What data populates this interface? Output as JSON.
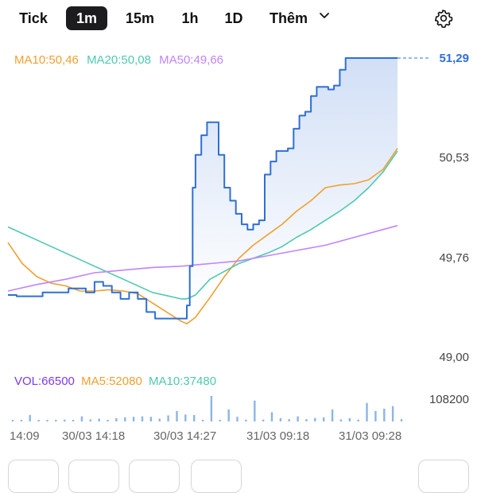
{
  "tabs": [
    {
      "label": "Tick",
      "active": false
    },
    {
      "label": "1m",
      "active": true
    },
    {
      "label": "15m",
      "active": false
    },
    {
      "label": "1h",
      "active": false
    },
    {
      "label": "1D",
      "active": false
    }
  ],
  "more_label": "Thêm",
  "icons": {
    "more": "chevron-down-icon",
    "settings": "gear-icon"
  },
  "ma_legend": [
    {
      "text": "MA10:50,46",
      "color": "#f0a030"
    },
    {
      "text": "MA20:50,08",
      "color": "#4ec9b0"
    },
    {
      "text": "MA50:49,66",
      "color": "#c084fc"
    }
  ],
  "vol_legend": [
    {
      "text": "VOL:66500",
      "color": "#7c3aed"
    },
    {
      "text": "MA5:52080",
      "color": "#f0a030"
    },
    {
      "text": "MA10:37480",
      "color": "#4ec9b0"
    }
  ],
  "price_axis": {
    "last": "51,29",
    "labels": [
      "50,53",
      "49,76",
      "49,00"
    ]
  },
  "volume_axis": {
    "max_label": "108200"
  },
  "time_axis": [
    "14:09",
    "30/03 14:18",
    "30/03 14:27",
    "31/03 09:18",
    "31/03 09:28"
  ],
  "colors": {
    "price": "#2f6fd6",
    "ma10": "#f0a030",
    "ma20": "#4ec9b0",
    "ma50": "#c084fc",
    "volume": "#8ab6e8"
  },
  "chart_data": {
    "type": "line",
    "price_range": [
      49.0,
      51.29
    ],
    "series": [
      {
        "name": "MA10",
        "color": "#f0a030",
        "x": [
          0,
          5,
          10,
          15,
          20,
          25,
          30,
          35,
          40,
          45,
          50,
          55,
          60,
          62,
          65,
          70,
          75,
          80,
          85,
          90,
          95,
          100,
          105,
          110,
          115,
          120,
          125,
          130,
          135
        ],
        "values": [
          49.88,
          49.72,
          49.62,
          49.57,
          49.55,
          49.51,
          49.51,
          49.52,
          49.51,
          49.49,
          49.42,
          49.35,
          49.28,
          49.26,
          49.31,
          49.46,
          49.62,
          49.76,
          49.86,
          49.94,
          50.02,
          50.12,
          50.2,
          50.3,
          50.32,
          50.33,
          50.36,
          50.44,
          50.6
        ]
      },
      {
        "name": "MA20",
        "color": "#4ec9b0",
        "x": [
          0,
          10,
          20,
          30,
          40,
          50,
          60,
          62,
          65,
          70,
          75,
          80,
          85,
          90,
          95,
          100,
          105,
          110,
          115,
          120,
          125,
          130,
          135
        ],
        "values": [
          50.0,
          49.9,
          49.8,
          49.7,
          49.6,
          49.5,
          49.45,
          49.45,
          49.48,
          49.6,
          49.66,
          49.72,
          49.76,
          49.8,
          49.85,
          49.92,
          49.98,
          50.05,
          50.12,
          50.2,
          50.3,
          50.42,
          50.58
        ]
      },
      {
        "name": "MA50",
        "color": "#c084fc",
        "x": [
          0,
          10,
          20,
          30,
          40,
          50,
          60,
          70,
          80,
          90,
          100,
          110,
          120,
          135
        ],
        "values": [
          49.51,
          49.56,
          49.6,
          49.65,
          49.67,
          49.69,
          49.7,
          49.72,
          49.74,
          49.78,
          49.82,
          49.86,
          49.92,
          50.01
        ]
      }
    ],
    "price_series": {
      "name": "Price",
      "color": "#2f6fd6",
      "x": [
        0,
        3,
        6,
        9,
        12,
        15,
        18,
        21,
        24,
        27,
        30,
        33,
        36,
        39,
        42,
        45,
        48,
        51,
        54,
        57,
        60,
        62,
        63,
        64,
        65,
        67,
        69,
        71,
        73,
        75,
        77,
        79,
        81,
        83,
        85,
        87,
        89,
        91,
        93,
        95,
        97,
        99,
        101,
        103,
        105,
        107,
        109,
        111,
        113,
        115,
        117,
        119,
        121,
        123,
        125,
        127,
        129,
        131,
        133,
        135
      ],
      "values": [
        49.48,
        49.47,
        49.47,
        49.47,
        49.5,
        49.5,
        49.5,
        49.53,
        49.53,
        49.5,
        49.58,
        49.55,
        49.5,
        49.45,
        49.5,
        49.45,
        49.35,
        49.3,
        49.3,
        49.3,
        49.3,
        49.4,
        49.7,
        50.3,
        50.55,
        50.7,
        50.8,
        50.8,
        50.55,
        50.3,
        50.2,
        50.1,
        50.02,
        49.98,
        50.02,
        50.05,
        50.4,
        50.5,
        50.58,
        50.58,
        50.6,
        50.75,
        50.85,
        50.88,
        51.0,
        51.07,
        51.07,
        51.05,
        51.08,
        51.2,
        51.29,
        51.29,
        51.29,
        51.29,
        51.29,
        51.29,
        51.29,
        51.29,
        51.29,
        51.29
      ]
    },
    "volume_series": {
      "name": "Volume",
      "x": [
        0,
        3,
        6,
        9,
        12,
        15,
        18,
        21,
        24,
        27,
        30,
        33,
        36,
        39,
        42,
        45,
        48,
        51,
        54,
        57,
        60,
        63,
        66,
        69,
        72,
        75,
        78,
        81,
        84,
        87,
        90,
        93,
        96,
        99,
        102,
        105,
        108,
        111,
        114,
        117,
        120,
        123,
        126,
        129,
        132,
        135
      ],
      "values": [
        3000,
        4000,
        28000,
        3000,
        5000,
        4000,
        8000,
        3000,
        22000,
        9000,
        12000,
        6000,
        14000,
        18000,
        20000,
        22000,
        20000,
        12000,
        26000,
        45000,
        30000,
        28000,
        6000,
        110000,
        7000,
        52000,
        20000,
        8000,
        90000,
        8000,
        40000,
        14000,
        10000,
        22000,
        10000,
        15000,
        18000,
        52000,
        9000,
        14000,
        8000,
        80000,
        45000,
        55000,
        66500,
        10000
      ]
    }
  }
}
